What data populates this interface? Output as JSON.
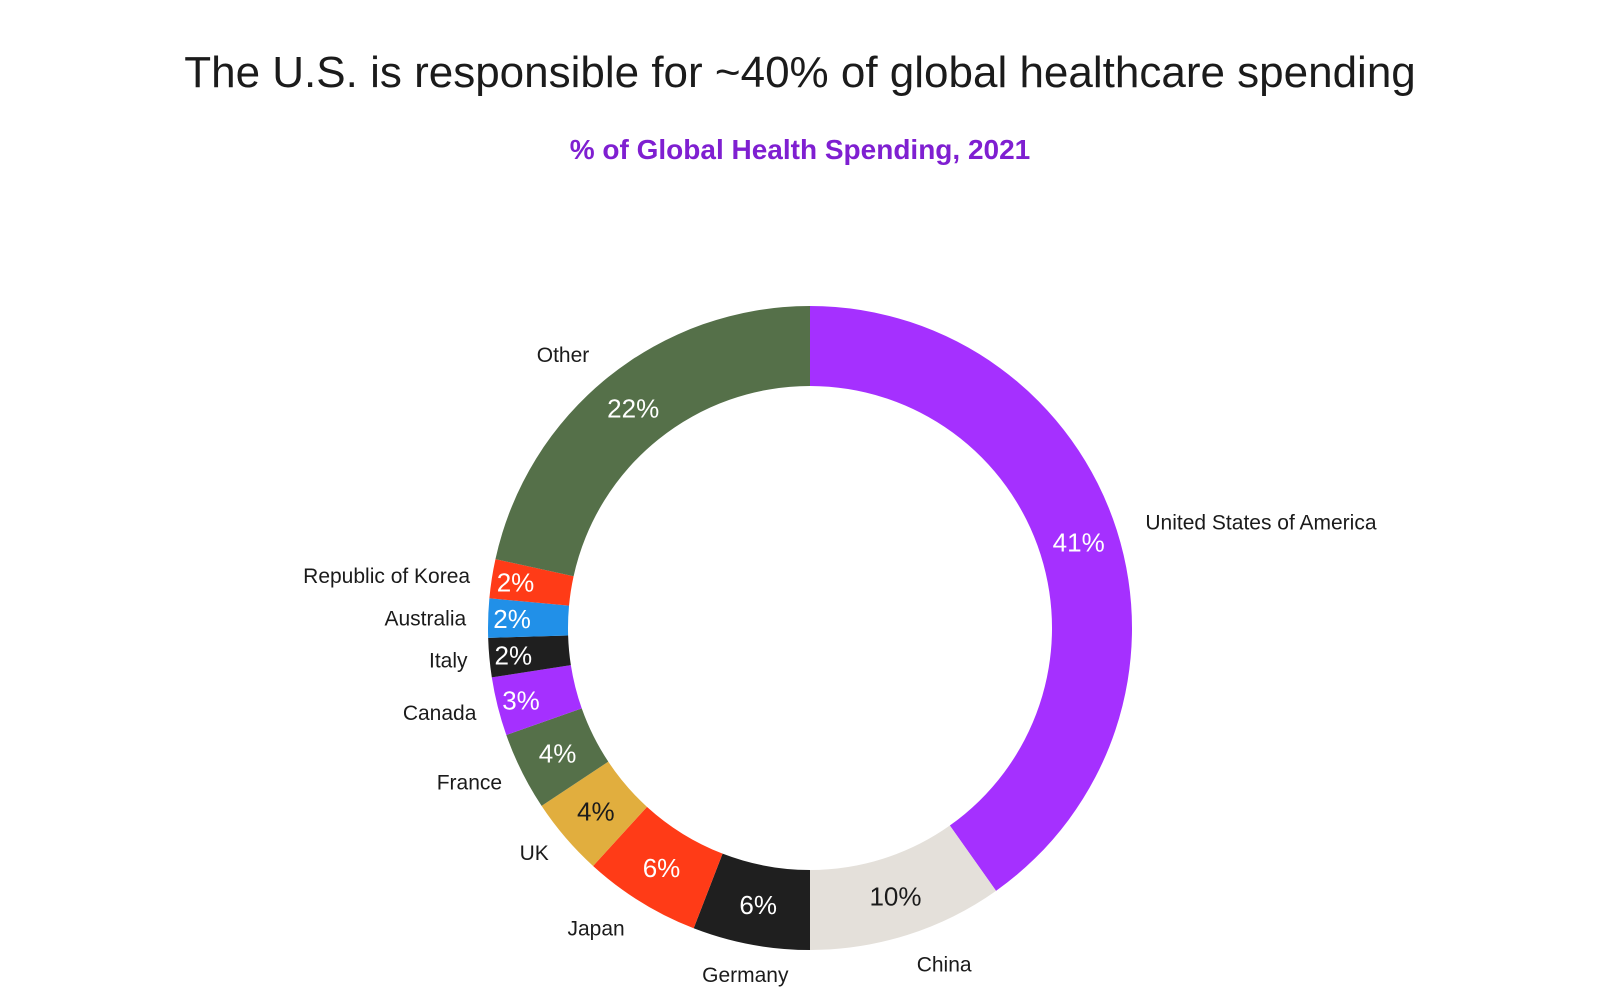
{
  "chart_data": {
    "type": "pie",
    "variant": "donut",
    "title": "The U.S. is responsible for ~40% of global healthcare spending",
    "subtitle": "% of Global Health Spending, 2021",
    "unit": "%",
    "slices": [
      {
        "label": "United States of America",
        "value": 41,
        "display": "41%",
        "color": "#a530ff",
        "text_color": "#ffffff"
      },
      {
        "label": "China",
        "value": 10,
        "display": "10%",
        "color": "#e4e0da",
        "text_color": "#1b1b1b"
      },
      {
        "label": "Germany",
        "value": 6,
        "display": "6%",
        "color": "#1f1f1f",
        "text_color": "#ffffff"
      },
      {
        "label": "Japan",
        "value": 6,
        "display": "6%",
        "color": "#ff3b17",
        "text_color": "#ffffff"
      },
      {
        "label": "UK",
        "value": 4,
        "display": "4%",
        "color": "#e1ae3e",
        "text_color": "#1b1b1b"
      },
      {
        "label": "France",
        "value": 4,
        "display": "4%",
        "color": "#557049",
        "text_color": "#ffffff"
      },
      {
        "label": "Canada",
        "value": 3,
        "display": "3%",
        "color": "#a530ff",
        "text_color": "#ffffff"
      },
      {
        "label": "Italy",
        "value": 2,
        "display": "2%",
        "color": "#1f1f1f",
        "text_color": "#ffffff"
      },
      {
        "label": "Australia",
        "value": 2,
        "display": "2%",
        "color": "#2190e8",
        "text_color": "#ffffff"
      },
      {
        "label": "Republic of Korea",
        "value": 2,
        "display": "2%",
        "color": "#ff3b17",
        "text_color": "#ffffff"
      },
      {
        "label": "Other",
        "value": 22,
        "display": "22%",
        "color": "#557049",
        "text_color": "#ffffff"
      }
    ]
  }
}
